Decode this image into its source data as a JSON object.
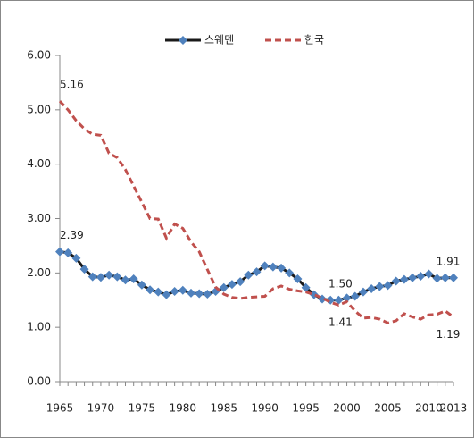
{
  "chart_data": {
    "type": "line",
    "x": [
      1965,
      1966,
      1967,
      1968,
      1969,
      1970,
      1971,
      1972,
      1973,
      1974,
      1975,
      1976,
      1977,
      1978,
      1979,
      1980,
      1981,
      1982,
      1983,
      1984,
      1985,
      1986,
      1987,
      1988,
      1989,
      1990,
      1991,
      1992,
      1993,
      1994,
      1995,
      1996,
      1997,
      1998,
      1999,
      2000,
      2001,
      2002,
      2003,
      2004,
      2005,
      2006,
      2007,
      2008,
      2009,
      2010,
      2011,
      2012,
      2013
    ],
    "xlim": [
      1965,
      2013
    ],
    "xticks": [
      1965,
      1970,
      1975,
      1980,
      1985,
      1990,
      1995,
      2000,
      2005,
      2010,
      2013
    ],
    "ylim": [
      0,
      6
    ],
    "yticks": [
      {
        "value": 0,
        "label": "0.00"
      },
      {
        "value": 1,
        "label": "1.00"
      },
      {
        "value": 2,
        "label": "2.00"
      },
      {
        "value": 3,
        "label": "3.00"
      },
      {
        "value": 4,
        "label": "4.00"
      },
      {
        "value": 5,
        "label": "5.00"
      },
      {
        "value": 6,
        "label": "6.00"
      }
    ],
    "legend": "top",
    "series": [
      {
        "name": "스웨덴",
        "color": "#4f81bd",
        "line_color": "#1a1a1a",
        "marker": "diamond",
        "values": [
          2.39,
          2.37,
          2.27,
          2.07,
          1.93,
          1.92,
          1.96,
          1.93,
          1.87,
          1.89,
          1.78,
          1.69,
          1.65,
          1.6,
          1.66,
          1.68,
          1.63,
          1.62,
          1.61,
          1.66,
          1.73,
          1.79,
          1.84,
          1.96,
          2.02,
          2.13,
          2.11,
          2.09,
          2.0,
          1.89,
          1.73,
          1.6,
          1.52,
          1.5,
          1.5,
          1.54,
          1.57,
          1.65,
          1.71,
          1.75,
          1.77,
          1.85,
          1.88,
          1.91,
          1.94,
          1.98,
          1.9,
          1.91,
          1.91
        ],
        "value_labels": [
          "2.39",
          null,
          null,
          null,
          null,
          null,
          null,
          null,
          null,
          null,
          null,
          null,
          null,
          null,
          null,
          null,
          null,
          null,
          null,
          null,
          null,
          null,
          null,
          null,
          null,
          null,
          null,
          null,
          null,
          null,
          null,
          null,
          null,
          null,
          "1.50",
          null,
          null,
          null,
          null,
          null,
          null,
          null,
          null,
          null,
          null,
          null,
          null,
          null,
          "1.91"
        ]
      },
      {
        "name": "한국",
        "color": "#c0504d",
        "dashed": true,
        "values": [
          5.16,
          5.0,
          4.8,
          4.65,
          4.55,
          4.53,
          4.2,
          4.12,
          3.9,
          3.6,
          3.3,
          3.0,
          2.99,
          2.64,
          2.9,
          2.82,
          2.57,
          2.39,
          2.06,
          1.74,
          1.61,
          1.55,
          1.53,
          1.55,
          1.56,
          1.57,
          1.71,
          1.76,
          1.7,
          1.67,
          1.65,
          1.6,
          1.54,
          1.46,
          1.41,
          1.47,
          1.3,
          1.17,
          1.18,
          1.15,
          1.08,
          1.12,
          1.25,
          1.19,
          1.15,
          1.23,
          1.24,
          1.3,
          1.19
        ],
        "value_labels": [
          "5.16",
          null,
          null,
          null,
          null,
          null,
          null,
          null,
          null,
          null,
          null,
          null,
          null,
          null,
          null,
          null,
          null,
          null,
          null,
          null,
          null,
          null,
          null,
          null,
          null,
          null,
          null,
          null,
          null,
          null,
          null,
          null,
          null,
          null,
          "1.41",
          null,
          null,
          null,
          null,
          null,
          null,
          null,
          null,
          null,
          null,
          null,
          null,
          null,
          "1.19"
        ]
      }
    ]
  }
}
